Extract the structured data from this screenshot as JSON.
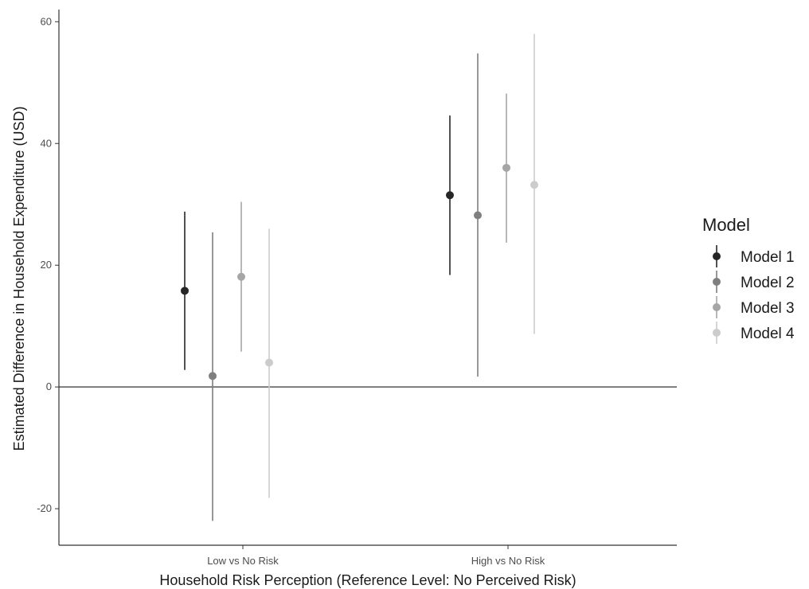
{
  "chart_data": {
    "type": "scatter",
    "subtype": "point-range (coefficient plot)",
    "xlabel": "Household Risk Perception (Reference Level: No Perceived Risk)",
    "ylabel": "Estimated Difference in Household Expenditure (USD)",
    "categories": [
      "Low vs No Risk",
      "High vs No Risk"
    ],
    "ylim": [
      -26,
      62
    ],
    "yticks": [
      -20,
      0,
      20,
      40,
      60
    ],
    "reference_line": 0,
    "grid": false,
    "legend": {
      "title": "Model",
      "position": "right"
    },
    "series": [
      {
        "name": "Model 1",
        "color": "#262626",
        "points": [
          {
            "estimate": 15.8,
            "lower": 2.8,
            "upper": 28.8
          },
          {
            "estimate": 31.5,
            "lower": 18.4,
            "upper": 44.6
          }
        ]
      },
      {
        "name": "Model 2",
        "color": "#7f7f7f",
        "points": [
          {
            "estimate": 1.8,
            "lower": -22.0,
            "upper": 25.4
          },
          {
            "estimate": 28.2,
            "lower": 1.7,
            "upper": 54.8
          }
        ]
      },
      {
        "name": "Model 3",
        "color": "#a6a6a6",
        "points": [
          {
            "estimate": 18.1,
            "lower": 5.8,
            "upper": 30.4
          },
          {
            "estimate": 36.0,
            "lower": 23.7,
            "upper": 48.2
          }
        ]
      },
      {
        "name": "Model 4",
        "color": "#cccccc",
        "points": [
          {
            "estimate": 4.0,
            "lower": -18.2,
            "upper": 26.0
          },
          {
            "estimate": 33.2,
            "lower": 8.7,
            "upper": 58.0
          }
        ]
      }
    ]
  }
}
